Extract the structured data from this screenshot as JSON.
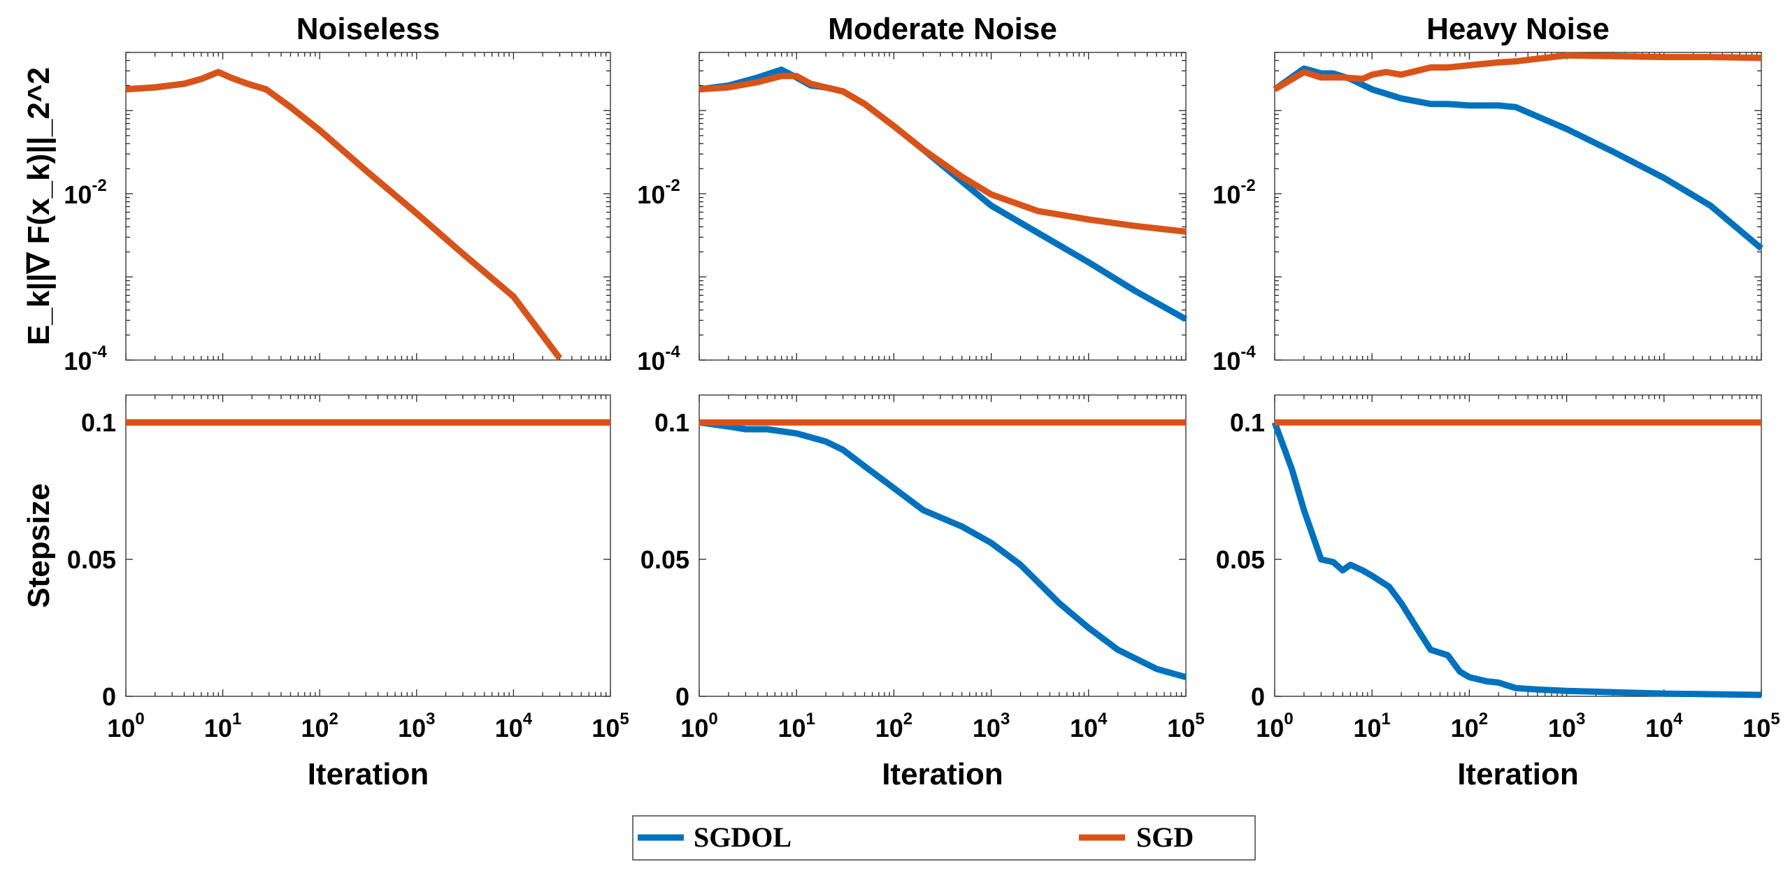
{
  "colors": {
    "SGDOL": "#0072BD",
    "SGD": "#D95319"
  },
  "chart_data": [
    {
      "type": "line",
      "panel": "top-left",
      "title": "Noiseless",
      "xlabel": "",
      "ylabel": "E_k||∇ F(x_k)||_2^2",
      "xscale": "log",
      "yscale": "log",
      "xlim": [
        1,
        100000
      ],
      "ylim": [
        0.0001,
        0.5
      ],
      "ytick_labels": [
        {
          "base": "10",
          "exp": "-2"
        },
        {
          "base": "10",
          "exp": "-4"
        }
      ],
      "series": [
        {
          "name": "SGDOL",
          "x": [
            1,
            2,
            4,
            6,
            9,
            12,
            18,
            28,
            50,
            100,
            300,
            1000,
            3000,
            10000,
            30000
          ],
          "y": [
            0.18,
            0.19,
            0.21,
            0.24,
            0.29,
            0.25,
            0.21,
            0.18,
            0.11,
            0.058,
            0.019,
            0.0058,
            0.0019,
            0.00058,
            0.000105
          ]
        },
        {
          "name": "SGD",
          "x": [
            1,
            2,
            4,
            6,
            9,
            12,
            18,
            28,
            50,
            100,
            300,
            1000,
            3000,
            10000,
            30000
          ],
          "y": [
            0.18,
            0.19,
            0.21,
            0.24,
            0.29,
            0.25,
            0.21,
            0.18,
            0.11,
            0.058,
            0.019,
            0.0058,
            0.0019,
            0.00058,
            0.000105
          ]
        }
      ]
    },
    {
      "type": "line",
      "panel": "top-middle",
      "title": "Moderate Noise",
      "xlabel": "",
      "ylabel": "",
      "xscale": "log",
      "yscale": "log",
      "xlim": [
        1,
        100000
      ],
      "ylim": [
        0.0001,
        0.5
      ],
      "ytick_labels": [
        {
          "base": "10",
          "exp": "-2"
        },
        {
          "base": "10",
          "exp": "-4"
        }
      ],
      "series": [
        {
          "name": "SGDOL",
          "x": [
            1,
            2,
            4,
            7,
            10,
            14,
            20,
            30,
            50,
            100,
            200,
            500,
            1000,
            3000,
            10000,
            30000,
            100000
          ],
          "y": [
            0.18,
            0.2,
            0.25,
            0.31,
            0.25,
            0.2,
            0.19,
            0.17,
            0.12,
            0.065,
            0.034,
            0.014,
            0.0072,
            0.0034,
            0.0015,
            0.00068,
            0.00031
          ]
        },
        {
          "name": "SGD",
          "x": [
            1,
            2,
            4,
            7,
            10,
            14,
            20,
            30,
            50,
            100,
            200,
            500,
            1000,
            3000,
            10000,
            30000,
            100000
          ],
          "y": [
            0.18,
            0.19,
            0.22,
            0.26,
            0.26,
            0.21,
            0.19,
            0.17,
            0.12,
            0.065,
            0.034,
            0.016,
            0.0098,
            0.0062,
            0.0049,
            0.0041,
            0.0035
          ]
        }
      ]
    },
    {
      "type": "line",
      "panel": "top-right",
      "title": "Heavy Noise",
      "xlabel": "",
      "ylabel": "",
      "xscale": "log",
      "yscale": "log",
      "xlim": [
        1,
        100000
      ],
      "ylim": [
        0.0001,
        0.5
      ],
      "ytick_labels": [
        {
          "base": "10",
          "exp": "-2"
        },
        {
          "base": "10",
          "exp": "-4"
        }
      ],
      "series": [
        {
          "name": "SGDOL",
          "x": [
            1,
            2,
            3,
            4,
            6,
            10,
            20,
            40,
            60,
            100,
            200,
            300,
            500,
            1000,
            3000,
            10000,
            30000,
            100000
          ],
          "y": [
            0.18,
            0.32,
            0.28,
            0.28,
            0.24,
            0.18,
            0.14,
            0.12,
            0.12,
            0.115,
            0.115,
            0.11,
            0.085,
            0.06,
            0.032,
            0.0155,
            0.0072,
            0.0022
          ]
        },
        {
          "name": "SGD",
          "x": [
            1,
            2,
            3,
            5,
            8,
            10,
            14,
            20,
            40,
            60,
            100,
            200,
            300,
            500,
            1000,
            3000,
            10000,
            30000,
            100000
          ],
          "y": [
            0.18,
            0.29,
            0.25,
            0.25,
            0.24,
            0.27,
            0.29,
            0.27,
            0.33,
            0.33,
            0.35,
            0.38,
            0.39,
            0.42,
            0.46,
            0.45,
            0.44,
            0.44,
            0.43
          ]
        }
      ]
    },
    {
      "type": "line",
      "panel": "bottom-left",
      "title": "",
      "xlabel": "Iteration",
      "ylabel": "Stepsize",
      "xscale": "log",
      "yscale": "linear",
      "xlim": [
        1,
        100000
      ],
      "ylim": [
        0,
        0.11
      ],
      "yticks": [
        0,
        0.05,
        0.1
      ],
      "ytick_labels": [
        "0",
        "0.05",
        "0.1"
      ],
      "xtick_labels": [
        {
          "base": "10",
          "exp": "0"
        },
        {
          "base": "10",
          "exp": "1"
        },
        {
          "base": "10",
          "exp": "2"
        },
        {
          "base": "10",
          "exp": "3"
        },
        {
          "base": "10",
          "exp": "4"
        },
        {
          "base": "10",
          "exp": "5"
        }
      ],
      "series": [
        {
          "name": "SGDOL",
          "x": [
            1,
            100000
          ],
          "y": [
            0.1,
            0.1
          ]
        },
        {
          "name": "SGD",
          "x": [
            1,
            100000
          ],
          "y": [
            0.1,
            0.1
          ]
        }
      ]
    },
    {
      "type": "line",
      "panel": "bottom-middle",
      "title": "",
      "xlabel": "Iteration",
      "ylabel": "",
      "xscale": "log",
      "yscale": "linear",
      "xlim": [
        1,
        100000
      ],
      "ylim": [
        0,
        0.11
      ],
      "yticks": [
        0,
        0.05,
        0.1
      ],
      "ytick_labels": [
        "0",
        "0.05",
        "0.1"
      ],
      "xtick_labels": [
        {
          "base": "10",
          "exp": "0"
        },
        {
          "base": "10",
          "exp": "1"
        },
        {
          "base": "10",
          "exp": "2"
        },
        {
          "base": "10",
          "exp": "3"
        },
        {
          "base": "10",
          "exp": "4"
        },
        {
          "base": "10",
          "exp": "5"
        }
      ],
      "series": [
        {
          "name": "SGDOL",
          "x": [
            1,
            2,
            3,
            5,
            10,
            20,
            30,
            50,
            100,
            200,
            500,
            1000,
            2000,
            5000,
            10000,
            20000,
            50000,
            100000
          ],
          "y": [
            0.1,
            0.0985,
            0.0975,
            0.0975,
            0.096,
            0.093,
            0.09,
            0.084,
            0.076,
            0.068,
            0.062,
            0.056,
            0.048,
            0.034,
            0.025,
            0.017,
            0.01,
            0.007
          ]
        },
        {
          "name": "SGD",
          "x": [
            1,
            100000
          ],
          "y": [
            0.1,
            0.1
          ]
        }
      ]
    },
    {
      "type": "line",
      "panel": "bottom-right",
      "title": "",
      "xlabel": "Iteration",
      "ylabel": "",
      "xscale": "log",
      "yscale": "linear",
      "xlim": [
        1,
        100000
      ],
      "ylim": [
        0,
        0.11
      ],
      "yticks": [
        0,
        0.05,
        0.1
      ],
      "ytick_labels": [
        "0",
        "0.05",
        "0.1"
      ],
      "xtick_labels": [
        {
          "base": "10",
          "exp": "0"
        },
        {
          "base": "10",
          "exp": "1"
        },
        {
          "base": "10",
          "exp": "2"
        },
        {
          "base": "10",
          "exp": "3"
        },
        {
          "base": "10",
          "exp": "4"
        },
        {
          "base": "10",
          "exp": "5"
        }
      ],
      "series": [
        {
          "name": "SGDOL",
          "x": [
            1,
            1.5,
            2,
            3,
            4,
            5,
            6,
            8,
            10,
            15,
            20,
            30,
            40,
            60,
            80,
            100,
            150,
            200,
            300,
            500,
            1000,
            3000,
            10000,
            100000
          ],
          "y": [
            0.1,
            0.083,
            0.068,
            0.05,
            0.049,
            0.046,
            0.048,
            0.046,
            0.044,
            0.04,
            0.034,
            0.024,
            0.017,
            0.015,
            0.009,
            0.007,
            0.0055,
            0.005,
            0.003,
            0.0025,
            0.002,
            0.0015,
            0.001,
            0.0005
          ]
        },
        {
          "name": "SGD",
          "x": [
            1,
            100000
          ],
          "y": [
            0.1,
            0.1
          ]
        }
      ]
    }
  ],
  "legend": {
    "placement": "bottom-center",
    "entries": [
      {
        "label": "SGDOL",
        "series": "SGDOL"
      },
      {
        "label": "SGD",
        "series": "SGD"
      }
    ]
  }
}
